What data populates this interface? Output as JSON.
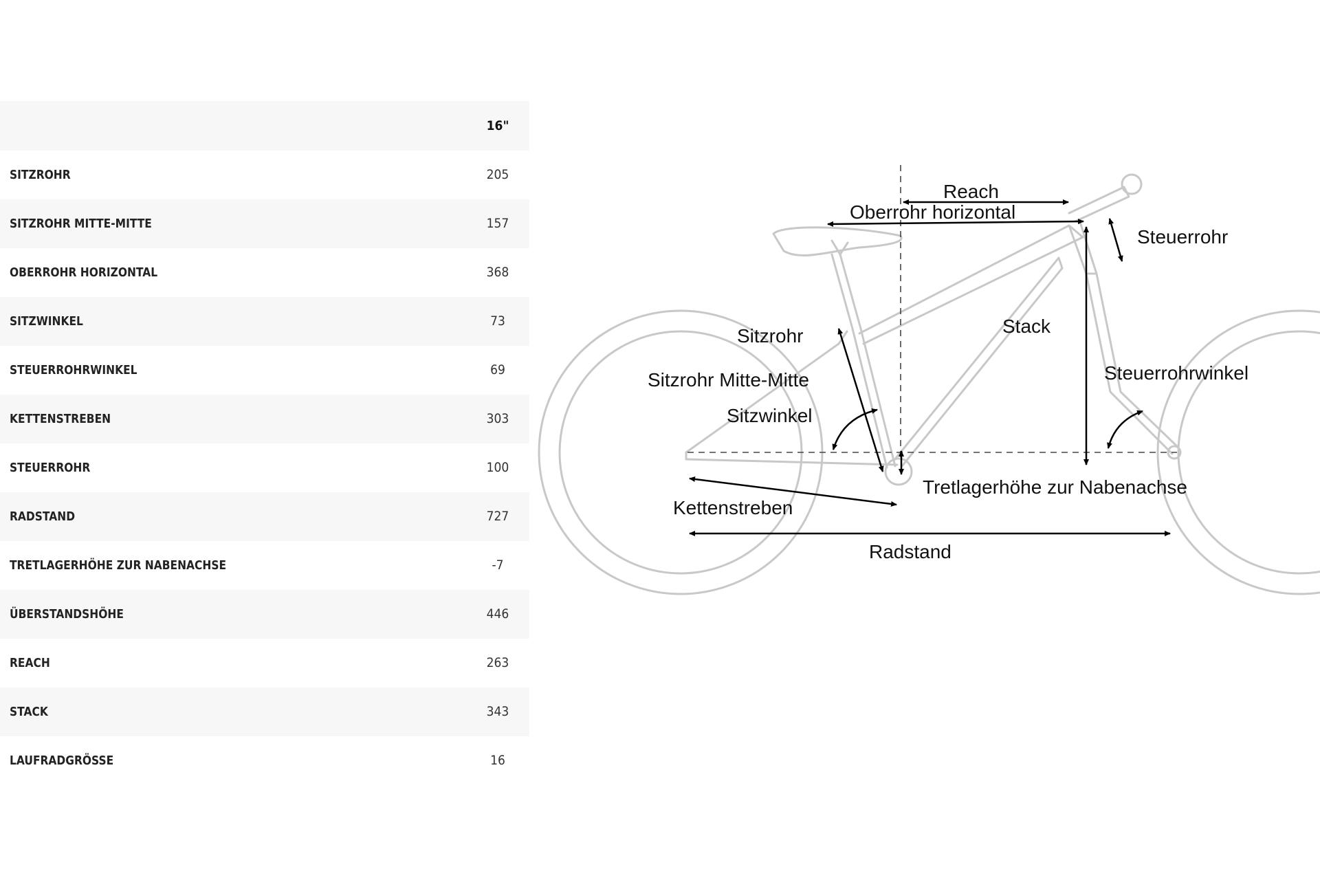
{
  "table": {
    "size_header": "16\"",
    "rows": [
      {
        "label": "SITZROHR",
        "value": "205"
      },
      {
        "label": "SITZROHR MITTE-MITTE",
        "value": "157"
      },
      {
        "label": "OBERROHR HORIZONTAL",
        "value": "368"
      },
      {
        "label": "SITZWINKEL",
        "value": "73"
      },
      {
        "label": "STEUERROHRWINKEL",
        "value": "69"
      },
      {
        "label": "KETTENSTREBEN",
        "value": "303"
      },
      {
        "label": "STEUERROHR",
        "value": "100"
      },
      {
        "label": "RADSTAND",
        "value": "727"
      },
      {
        "label": "TRETLAGERHÖHE ZUR NABENACHSE",
        "value": "-7"
      },
      {
        "label": "ÜBERSTANDSHÖHE",
        "value": "446"
      },
      {
        "label": "REACH",
        "value": "263"
      },
      {
        "label": "STACK",
        "value": "343"
      },
      {
        "label": "LAUFRADGRÖSSE",
        "value": "16"
      }
    ]
  },
  "diagram": {
    "labels": {
      "reach": "Reach",
      "top_tube": "Oberrohr horizontal",
      "head_tube": "Steuerrohr",
      "seat_tube": "Sitzrohr",
      "stack": "Stack",
      "seat_tube_cc": "Sitzrohr Mitte-Mitte",
      "head_angle": "Steuerrohrwinkel",
      "seat_angle": "Sitzwinkel",
      "bb_drop": "Tretlagerhöhe zur Nabenachse",
      "chainstay": "Kettenstreben",
      "wheelbase": "Radstand"
    },
    "frame_color": "#c8c8c8",
    "measure_color": "#000000"
  }
}
